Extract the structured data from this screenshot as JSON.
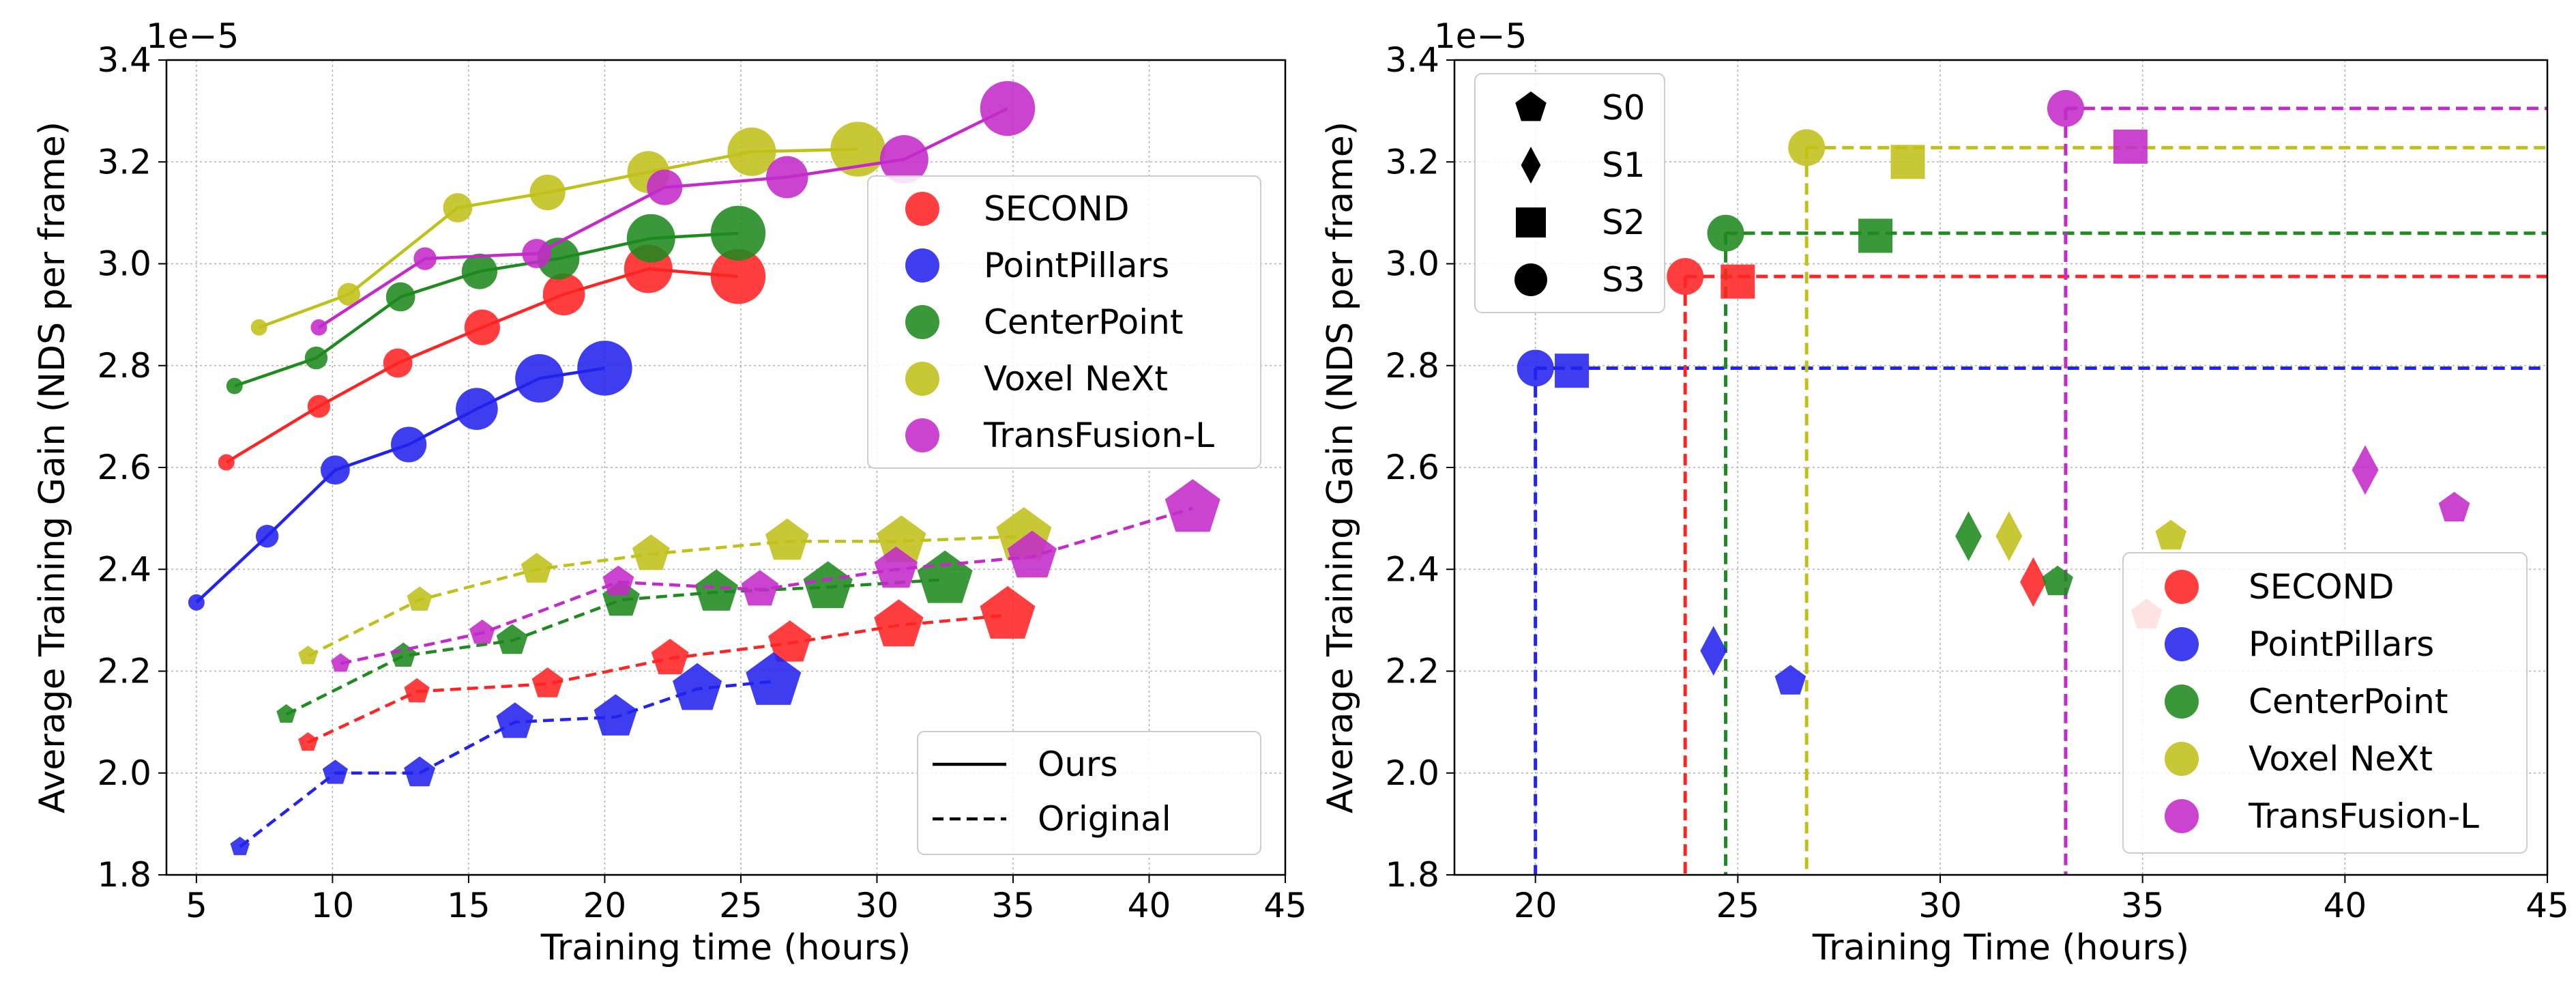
{
  "chart_data": [
    {
      "type": "line",
      "xlabel": "Training time (hours)",
      "ylabel": "Average Training Gain (NDS per frame)",
      "y_multiplier_label": "1e−5",
      "xlim": [
        3.9,
        45
      ],
      "ylim": [
        1.8,
        3.4
      ],
      "xticks": [
        5,
        10,
        15,
        20,
        25,
        30,
        35,
        40,
        45
      ],
      "yticks": [
        1.8,
        2.0,
        2.2,
        2.4,
        2.6,
        2.8,
        3.0,
        3.2,
        3.4
      ],
      "xtick_labels": [
        "5",
        "10",
        "15",
        "20",
        "25",
        "30",
        "35",
        "40",
        "45"
      ],
      "ytick_labels": [
        "1.8",
        "2.0",
        "2.2",
        "2.4",
        "2.6",
        "2.8",
        "3.0",
        "3.2",
        "3.4"
      ],
      "grid": true,
      "series": [
        {
          "name": "SECOND",
          "color": "#ff2424",
          "variant": "ours",
          "marker": "circle",
          "x": [
            6.1,
            9.5,
            12.4,
            15.5,
            18.5,
            21.6,
            24.9
          ],
          "y": [
            2.61,
            2.72,
            2.805,
            2.875,
            2.94,
            2.99,
            2.975
          ]
        },
        {
          "name": "PointPillars",
          "color": "#2323ee",
          "variant": "ours",
          "marker": "circle",
          "x": [
            5.0,
            7.6,
            10.1,
            12.8,
            15.3,
            17.6,
            20.0
          ],
          "y": [
            2.335,
            2.465,
            2.595,
            2.645,
            2.715,
            2.775,
            2.795
          ]
        },
        {
          "name": "CenterPoint",
          "color": "#1f8a1f",
          "variant": "ours",
          "marker": "circle",
          "x": [
            6.4,
            9.4,
            12.5,
            15.4,
            18.3,
            21.7,
            24.9
          ],
          "y": [
            2.76,
            2.815,
            2.935,
            2.985,
            3.01,
            3.05,
            3.06
          ]
        },
        {
          "name": "Voxel NeXt",
          "color": "#c0c01a",
          "variant": "ours",
          "marker": "circle",
          "x": [
            7.3,
            10.6,
            14.6,
            17.9,
            21.6,
            25.4,
            29.3
          ],
          "y": [
            2.875,
            2.94,
            3.11,
            3.14,
            3.18,
            3.22,
            3.225
          ]
        },
        {
          "name": "TransFusion-L",
          "color": "#c32ac9",
          "variant": "ours",
          "marker": "circle",
          "x": [
            9.5,
            13.4,
            17.5,
            22.2,
            26.7,
            31.0,
            34.8
          ],
          "y": [
            2.875,
            3.01,
            3.02,
            3.15,
            3.17,
            3.205,
            3.305
          ]
        },
        {
          "name": "SECOND",
          "color": "#ff2424",
          "variant": "original",
          "marker": "pentagon",
          "x": [
            9.1,
            13.1,
            17.9,
            22.4,
            26.8,
            30.8,
            34.8
          ],
          "y": [
            2.06,
            2.16,
            2.175,
            2.225,
            2.255,
            2.29,
            2.31
          ]
        },
        {
          "name": "PointPillars",
          "color": "#2323ee",
          "variant": "original",
          "marker": "pentagon",
          "x": [
            6.6,
            10.1,
            13.2,
            16.7,
            20.4,
            23.4,
            26.2
          ],
          "y": [
            1.855,
            2.0,
            2.0,
            2.1,
            2.11,
            2.165,
            2.18
          ]
        },
        {
          "name": "CenterPoint",
          "color": "#1f8a1f",
          "variant": "original",
          "marker": "pentagon",
          "x": [
            8.3,
            12.6,
            16.6,
            20.6,
            24.1,
            28.2,
            32.5
          ],
          "y": [
            2.115,
            2.23,
            2.26,
            2.34,
            2.355,
            2.365,
            2.38
          ]
        },
        {
          "name": "Voxel NeXt",
          "color": "#c0c01a",
          "variant": "original",
          "marker": "pentagon",
          "x": [
            9.1,
            13.2,
            17.5,
            21.7,
            26.7,
            30.9,
            35.4
          ],
          "y": [
            2.23,
            2.34,
            2.4,
            2.43,
            2.455,
            2.455,
            2.465
          ]
        },
        {
          "name": "TransFusion-L",
          "color": "#c32ac9",
          "variant": "original",
          "marker": "pentagon",
          "x": [
            10.3,
            15.5,
            20.5,
            25.7,
            30.7,
            35.7,
            41.6
          ],
          "y": [
            2.215,
            2.275,
            2.375,
            2.36,
            2.4,
            2.425,
            2.52
          ]
        }
      ],
      "legend_models": {
        "position": "center-right",
        "entries": [
          {
            "label": "SECOND",
            "color": "#ff2424"
          },
          {
            "label": "PointPillars",
            "color": "#2323ee"
          },
          {
            "label": "CenterPoint",
            "color": "#1f8a1f"
          },
          {
            "label": "Voxel NeXt",
            "color": "#c0c01a"
          },
          {
            "label": "TransFusion-L",
            "color": "#c32ac9"
          }
        ]
      },
      "legend_styles": {
        "position": "lower-right",
        "entries": [
          {
            "label": "Ours",
            "dash": "solid"
          },
          {
            "label": "Original",
            "dash": "dashed"
          }
        ]
      }
    },
    {
      "type": "scatter",
      "xlabel": "Training Time (hours)",
      "ylabel": "Average Training Gain (NDS per frame)",
      "y_multiplier_label": "1e−5",
      "xlim": [
        18,
        45
      ],
      "ylim": [
        1.8,
        3.4
      ],
      "xticks": [
        20,
        25,
        30,
        35,
        40,
        45
      ],
      "yticks": [
        1.8,
        2.0,
        2.2,
        2.4,
        2.6,
        2.8,
        3.0,
        3.2,
        3.4
      ],
      "xtick_labels": [
        "20",
        "25",
        "30",
        "35",
        "40",
        "45"
      ],
      "ytick_labels": [
        "1.8",
        "2.0",
        "2.2",
        "2.4",
        "2.6",
        "2.8",
        "3.0",
        "3.2",
        "3.4"
      ],
      "grid": true,
      "points": [
        {
          "model": "SECOND",
          "color": "#ff2424",
          "stage": "S3",
          "x": 23.7,
          "y": 2.975
        },
        {
          "model": "SECOND",
          "color": "#ff2424",
          "stage": "S2",
          "x": 25.0,
          "y": 2.965
        },
        {
          "model": "SECOND",
          "color": "#ff2424",
          "stage": "S1",
          "x": 32.3,
          "y": 2.375
        },
        {
          "model": "SECOND",
          "color": "#ff2424",
          "stage": "S0",
          "x": 35.1,
          "y": 2.31
        },
        {
          "model": "PointPillars",
          "color": "#2323ee",
          "stage": "S3",
          "x": 20.0,
          "y": 2.795
        },
        {
          "model": "PointPillars",
          "color": "#2323ee",
          "stage": "S2",
          "x": 20.9,
          "y": 2.79
        },
        {
          "model": "PointPillars",
          "color": "#2323ee",
          "stage": "S1",
          "x": 24.4,
          "y": 2.24
        },
        {
          "model": "PointPillars",
          "color": "#2323ee",
          "stage": "S0",
          "x": 26.3,
          "y": 2.18
        },
        {
          "model": "CenterPoint",
          "color": "#1f8a1f",
          "stage": "S3",
          "x": 24.7,
          "y": 3.06
        },
        {
          "model": "CenterPoint",
          "color": "#1f8a1f",
          "stage": "S2",
          "x": 28.4,
          "y": 3.055
        },
        {
          "model": "CenterPoint",
          "color": "#1f8a1f",
          "stage": "S1",
          "x": 30.7,
          "y": 2.465
        },
        {
          "model": "CenterPoint",
          "color": "#1f8a1f",
          "stage": "S0",
          "x": 32.9,
          "y": 2.375
        },
        {
          "model": "Voxel NeXt",
          "color": "#c0c01a",
          "stage": "S3",
          "x": 26.7,
          "y": 3.228
        },
        {
          "model": "Voxel NeXt",
          "color": "#c0c01a",
          "stage": "S2",
          "x": 29.2,
          "y": 3.2
        },
        {
          "model": "Voxel NeXt",
          "color": "#c0c01a",
          "stage": "S1",
          "x": 31.7,
          "y": 2.465
        },
        {
          "model": "Voxel NeXt",
          "color": "#c0c01a",
          "stage": "S0",
          "x": 35.7,
          "y": 2.465
        },
        {
          "model": "TransFusion-L",
          "color": "#c32ac9",
          "stage": "S3",
          "x": 33.1,
          "y": 3.305
        },
        {
          "model": "TransFusion-L",
          "color": "#c32ac9",
          "stage": "S2",
          "x": 34.7,
          "y": 3.23
        },
        {
          "model": "TransFusion-L",
          "color": "#c32ac9",
          "stage": "S1",
          "x": 40.5,
          "y": 2.595
        },
        {
          "model": "TransFusion-L",
          "color": "#c32ac9",
          "stage": "S0",
          "x": 42.7,
          "y": 2.52
        }
      ],
      "reference_lines": [
        {
          "model": "PointPillars",
          "color": "#2323ee",
          "x": 20.0,
          "y": 2.795
        },
        {
          "model": "SECOND",
          "color": "#ff2424",
          "x": 23.7,
          "y": 2.975
        },
        {
          "model": "CenterPoint",
          "color": "#1f8a1f",
          "x": 24.7,
          "y": 3.06
        },
        {
          "model": "Voxel NeXt",
          "color": "#c0c01a",
          "x": 26.7,
          "y": 3.228
        },
        {
          "model": "TransFusion-L",
          "color": "#c32ac9",
          "x": 33.1,
          "y": 3.305
        }
      ],
      "legend_stages": {
        "position": "upper-left",
        "entries": [
          {
            "label": "S0",
            "marker": "pentagon"
          },
          {
            "label": "S1",
            "marker": "diamond"
          },
          {
            "label": "S2",
            "marker": "square"
          },
          {
            "label": "S3",
            "marker": "circle"
          }
        ]
      },
      "legend_models": {
        "position": "lower-right",
        "entries": [
          {
            "label": "SECOND",
            "color": "#ff2424"
          },
          {
            "label": "PointPillars",
            "color": "#2323ee"
          },
          {
            "label": "CenterPoint",
            "color": "#1f8a1f"
          },
          {
            "label": "Voxel NeXt",
            "color": "#c0c01a"
          },
          {
            "label": "TransFusion-L",
            "color": "#c32ac9"
          }
        ]
      }
    }
  ]
}
